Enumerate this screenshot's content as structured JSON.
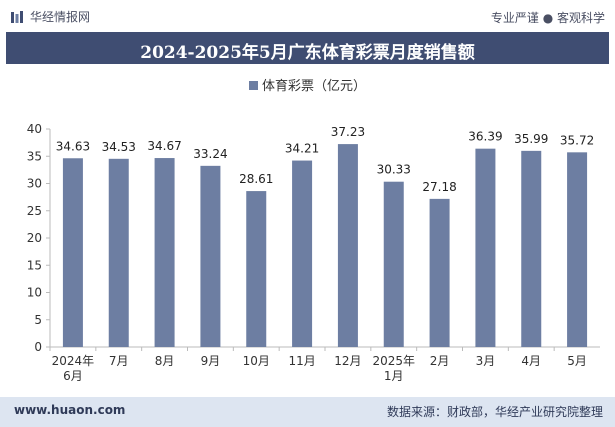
{
  "header": {
    "brand": "华经情报网",
    "tagline": "专业严谨 ● 客观科学"
  },
  "footer": {
    "url": "www.huaon.com",
    "source": "数据来源：财政部，华经产业研究院整理"
  },
  "colors": {
    "title_bar": "#3f4d72",
    "bar": "#6d7ea2",
    "footer_bg": "#dde5f1"
  },
  "chart_data": {
    "type": "bar",
    "title": "2024-2025年5月广东体育彩票月度销售额",
    "xlabel": "",
    "ylabel": "",
    "ylim": [
      0,
      40
    ],
    "yticks": [
      "0",
      "5",
      "10",
      "15",
      "20",
      "25",
      "30",
      "35",
      "40"
    ],
    "grid": false,
    "legend_position": "top-center",
    "categories": [
      "2024年\n6月",
      "7月",
      "8月",
      "9月",
      "10月",
      "11月",
      "12月",
      "2025年\n1月",
      "2月",
      "3月",
      "4月",
      "5月"
    ],
    "series": [
      {
        "name": "体育彩票（亿元）",
        "values": [
          34.63,
          34.53,
          34.67,
          33.24,
          28.61,
          34.21,
          37.23,
          30.33,
          27.18,
          36.39,
          35.99,
          35.72
        ]
      }
    ]
  }
}
